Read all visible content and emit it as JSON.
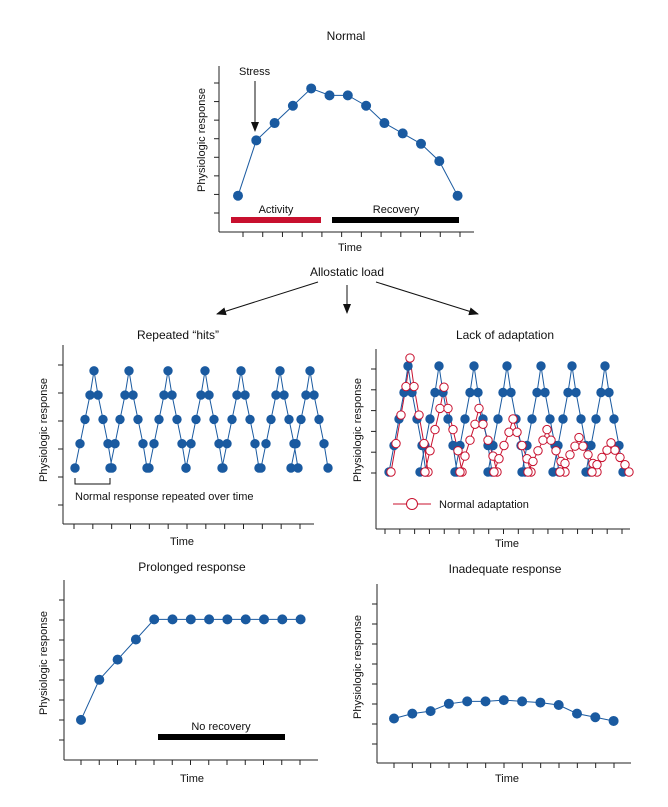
{
  "colors": {
    "blue": "#1a5aa0",
    "red": "#c8102e",
    "bar_black": "#000000",
    "axis": "#222222"
  },
  "normal": {
    "title": "Normal",
    "ylabel": "Physiologic response",
    "xlabel": "Time",
    "stress_label": "Stress",
    "activity_label": "Activity",
    "recovery_label": "Recovery",
    "values": [
      1,
      4.2,
      5.2,
      6.2,
      7.2,
      6.8,
      6.8,
      6.2,
      5.2,
      4.6,
      4.0,
      3.0,
      1.0
    ]
  },
  "allostatic": {
    "label": "Allostatic load"
  },
  "repeated_hits": {
    "title": "Repeated “hits”",
    "ylabel": "Physiologic response",
    "xlabel": "Time",
    "note": "Normal response repeated over time",
    "values": [
      0,
      1,
      2,
      3,
      4,
      3,
      2,
      1,
      0
    ]
  },
  "lack_adaptation": {
    "title": "Lack of adaptation",
    "ylabel": "Physiologic response",
    "xlabel": "Time",
    "legend": "Normal adaptation",
    "values": [
      0,
      1,
      2,
      3,
      4,
      3,
      2,
      1,
      0
    ]
  },
  "prolonged": {
    "title": "Prolonged response",
    "ylabel": "Physiologic response",
    "xlabel": "Time",
    "bar_label": "No recovery",
    "values": [
      1,
      3.0,
      4.0,
      5.0,
      6.0,
      6.0,
      6.0,
      6.0,
      6.0,
      6.0,
      6.0,
      6.0,
      6.0
    ]
  },
  "inadequate": {
    "title": "Inadequate response",
    "ylabel": "Physiologic response",
    "xlabel": "Time",
    "values": [
      1.0,
      1.2,
      1.3,
      1.6,
      1.7,
      1.7,
      1.75,
      1.7,
      1.65,
      1.55,
      1.2,
      1.05,
      0.9
    ]
  }
}
